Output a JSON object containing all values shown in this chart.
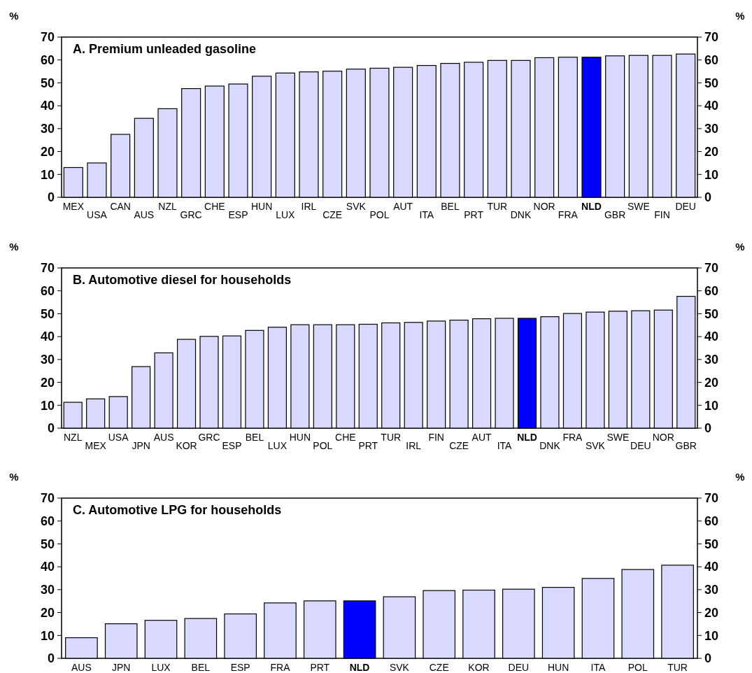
{
  "chart_data": [
    {
      "type": "bar",
      "title": "A. Premium unleaded gasoline",
      "ylabel": "%",
      "y2label": "%",
      "categories": [
        "MEX",
        "USA",
        "CAN",
        "AUS",
        "NZL",
        "GRC",
        "CHE",
        "ESP",
        "HUN",
        "LUX",
        "IRL",
        "CZE",
        "SVK",
        "POL",
        "AUT",
        "ITA",
        "BEL",
        "PRT",
        "TUR",
        "DNK",
        "NOR",
        "FRA",
        "NLD",
        "GBR",
        "SWE",
        "FIN",
        "DEU"
      ],
      "values": [
        13,
        15,
        27.5,
        34.5,
        38.7,
        47.5,
        48.6,
        49.5,
        52.9,
        54.3,
        54.8,
        55.1,
        56,
        56.4,
        56.8,
        57.6,
        58.5,
        59,
        59.8,
        59.8,
        61,
        61.2,
        61.2,
        61.8,
        62,
        62,
        62.6
      ],
      "colors": [
        "#d9d9ff",
        "#d9d9ff",
        "#d9d9ff",
        "#d9d9ff",
        "#d9d9ff",
        "#d9d9ff",
        "#d9d9ff",
        "#d9d9ff",
        "#d9d9ff",
        "#d9d9ff",
        "#d9d9ff",
        "#d9d9ff",
        "#d9d9ff",
        "#d9d9ff",
        "#d9d9ff",
        "#d9d9ff",
        "#d9d9ff",
        "#d9d9ff",
        "#d9d9ff",
        "#d9d9ff",
        "#d9d9ff",
        "#d9d9ff",
        "#0000ff",
        "#d9d9ff",
        "#d9d9ff",
        "#d9d9ff",
        "#d9d9ff"
      ],
      "ylim": [
        0,
        70
      ],
      "yticks": [
        0,
        10,
        20,
        30,
        40,
        50,
        60,
        70
      ],
      "y2lim": [
        0,
        70
      ],
      "y2ticks": [
        0,
        10,
        20,
        30,
        40,
        50,
        60,
        70
      ]
    },
    {
      "type": "bar",
      "title": "B. Automotive diesel for households",
      "ylabel": "%",
      "y2label": "%",
      "categories": [
        "NZL",
        "MEX",
        "USA",
        "JPN",
        "AUS",
        "KOR",
        "GRC",
        "ESP",
        "BEL",
        "LUX",
        "HUN",
        "POL",
        "CHE",
        "PRT",
        "TUR",
        "IRL",
        "FIN",
        "CZE",
        "AUT",
        "ITA",
        "NLD",
        "DNK",
        "FRA",
        "SVK",
        "SWE",
        "DEU",
        "NOR",
        "GBR"
      ],
      "values": [
        11.3,
        12.8,
        13.8,
        26.9,
        32.9,
        38.8,
        40.1,
        40.3,
        42.7,
        44.1,
        45.2,
        45.2,
        45.2,
        45.4,
        46,
        46.2,
        46.8,
        47.2,
        47.8,
        48,
        48,
        48.7,
        50.1,
        50.7,
        51.1,
        51.3,
        51.6,
        57.6
      ],
      "colors": [
        "#d9d9ff",
        "#d9d9ff",
        "#d9d9ff",
        "#d9d9ff",
        "#d9d9ff",
        "#d9d9ff",
        "#d9d9ff",
        "#d9d9ff",
        "#d9d9ff",
        "#d9d9ff",
        "#d9d9ff",
        "#d9d9ff",
        "#d9d9ff",
        "#d9d9ff",
        "#d9d9ff",
        "#d9d9ff",
        "#d9d9ff",
        "#d9d9ff",
        "#d9d9ff",
        "#d9d9ff",
        "#0000ff",
        "#d9d9ff",
        "#d9d9ff",
        "#d9d9ff",
        "#d9d9ff",
        "#d9d9ff",
        "#d9d9ff",
        "#d9d9ff"
      ],
      "ylim": [
        0,
        70
      ],
      "yticks": [
        0,
        10,
        20,
        30,
        40,
        50,
        60,
        70
      ],
      "y2lim": [
        0,
        70
      ],
      "y2ticks": [
        0,
        10,
        20,
        30,
        40,
        50,
        60,
        70
      ]
    },
    {
      "type": "bar",
      "title": "C. Automotive LPG for households",
      "ylabel": "%",
      "y2label": "%",
      "categories": [
        "AUS",
        "JPN",
        "LUX",
        "BEL",
        "ESP",
        "FRA",
        "PRT",
        "NLD",
        "SVK",
        "CZE",
        "KOR",
        "DEU",
        "HUN",
        "ITA",
        "POL",
        "TUR"
      ],
      "values": [
        9,
        15.1,
        16.6,
        17.4,
        19.4,
        24.2,
        25.1,
        25.1,
        26.9,
        29.6,
        29.8,
        30.2,
        31,
        34.9,
        38.8,
        40.7
      ],
      "colors": [
        "#d9d9ff",
        "#d9d9ff",
        "#d9d9ff",
        "#d9d9ff",
        "#d9d9ff",
        "#d9d9ff",
        "#d9d9ff",
        "#0000ff",
        "#d9d9ff",
        "#d9d9ff",
        "#d9d9ff",
        "#d9d9ff",
        "#d9d9ff",
        "#d9d9ff",
        "#d9d9ff",
        "#d9d9ff"
      ],
      "ylim": [
        0,
        70
      ],
      "yticks": [
        0,
        10,
        20,
        30,
        40,
        50,
        60,
        70
      ],
      "y2lim": [
        0,
        70
      ],
      "y2ticks": [
        0,
        10,
        20,
        30,
        40,
        50,
        60,
        70
      ]
    }
  ]
}
